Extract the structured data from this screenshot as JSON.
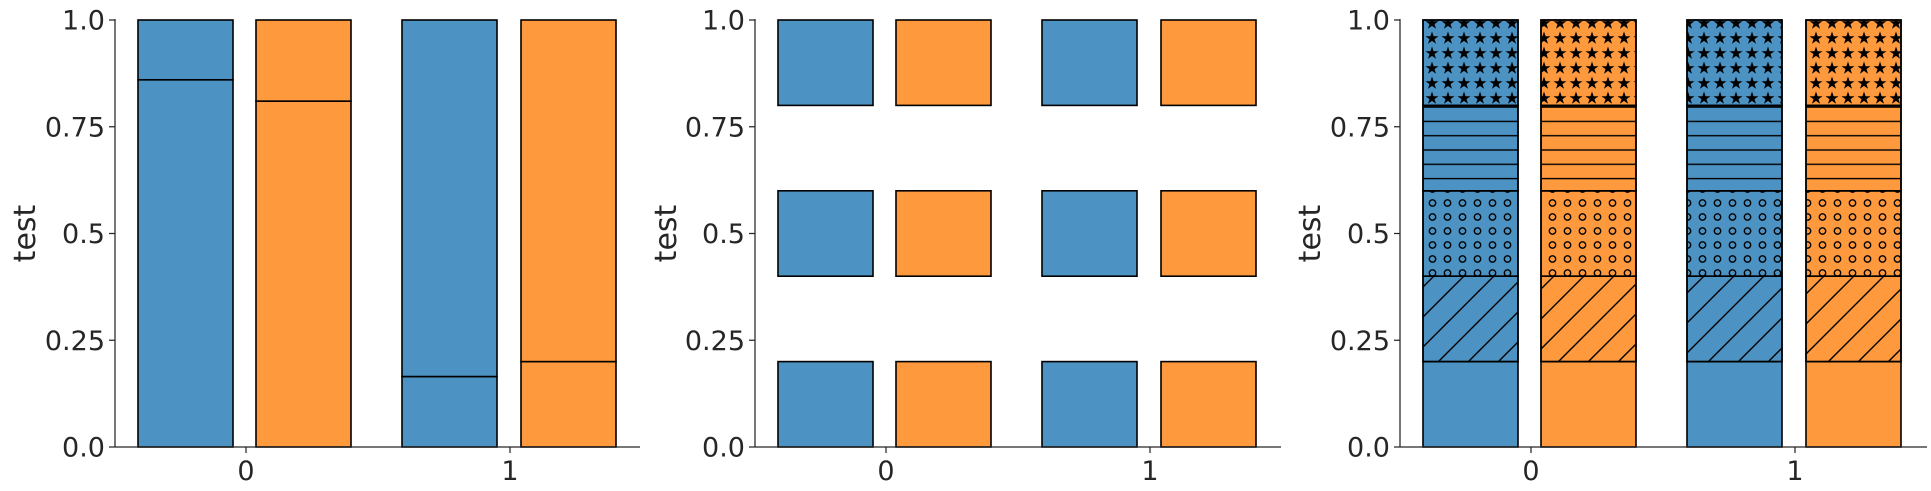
{
  "colors": {
    "blue": "#4c92c3",
    "orange": "#ff993e"
  },
  "chart_data": [
    {
      "type": "bar",
      "variant": "stacked",
      "categories": [
        "0",
        "1"
      ],
      "ylabel": "test",
      "xlabel": "",
      "ylim": [
        0,
        1
      ],
      "yticks": [
        "0.0",
        "0.25",
        "0.5",
        "0.75",
        "1.0"
      ],
      "bars": [
        {
          "category": "0",
          "color": "blue",
          "segments": [
            {
              "from": 0,
              "to": 0.86
            },
            {
              "from": 0.86,
              "to": 1.0
            }
          ]
        },
        {
          "category": "0",
          "color": "orange",
          "segments": [
            {
              "from": 0,
              "to": 0.81
            },
            {
              "from": 0.81,
              "to": 1.0
            }
          ]
        },
        {
          "category": "1",
          "color": "blue",
          "segments": [
            {
              "from": 0,
              "to": 0.165
            },
            {
              "from": 0.165,
              "to": 1.0
            }
          ]
        },
        {
          "category": "1",
          "color": "orange",
          "segments": [
            {
              "from": 0,
              "to": 0.2
            },
            {
              "from": 0.2,
              "to": 1.0
            }
          ]
        }
      ],
      "spines": "left-bottom",
      "grid": false
    },
    {
      "type": "bar",
      "variant": "floating",
      "categories": [
        "0",
        "1"
      ],
      "ylabel": "test",
      "xlabel": "",
      "ylim": [
        0,
        1
      ],
      "yticks": [
        "0.0",
        "0.25",
        "0.5",
        "0.75",
        "1.0"
      ],
      "bars": [
        {
          "category": "0",
          "color": "blue",
          "segments": [
            {
              "from": 0,
              "to": 0.2
            },
            {
              "from": 0.4,
              "to": 0.6
            },
            {
              "from": 0.8,
              "to": 1.0
            }
          ]
        },
        {
          "category": "0",
          "color": "orange",
          "segments": [
            {
              "from": 0,
              "to": 0.2
            },
            {
              "from": 0.4,
              "to": 0.6
            },
            {
              "from": 0.8,
              "to": 1.0
            }
          ]
        },
        {
          "category": "1",
          "color": "blue",
          "segments": [
            {
              "from": 0,
              "to": 0.2
            },
            {
              "from": 0.4,
              "to": 0.6
            },
            {
              "from": 0.8,
              "to": 1.0
            }
          ]
        },
        {
          "category": "1",
          "color": "orange",
          "segments": [
            {
              "from": 0,
              "to": 0.2
            },
            {
              "from": 0.4,
              "to": 0.6
            },
            {
              "from": 0.8,
              "to": 1.0
            }
          ]
        }
      ],
      "spines": "left-bottom",
      "grid": false
    },
    {
      "type": "bar",
      "variant": "stacked-hatched",
      "categories": [
        "0",
        "1"
      ],
      "ylabel": "test",
      "xlabel": "",
      "ylim": [
        0,
        1
      ],
      "yticks": [
        "0.0",
        "0.25",
        "0.5",
        "0.75",
        "1.0"
      ],
      "bars": [
        {
          "category": "0",
          "color": "blue",
          "segments": [
            {
              "from": 0,
              "to": 0.2,
              "hatch": "none"
            },
            {
              "from": 0.2,
              "to": 0.4,
              "hatch": "diagonal"
            },
            {
              "from": 0.4,
              "to": 0.6,
              "hatch": "circles"
            },
            {
              "from": 0.6,
              "to": 0.8,
              "hatch": "horizontal"
            },
            {
              "from": 0.8,
              "to": 1.0,
              "hatch": "stars"
            }
          ]
        },
        {
          "category": "0",
          "color": "orange",
          "segments": [
            {
              "from": 0,
              "to": 0.2,
              "hatch": "none"
            },
            {
              "from": 0.2,
              "to": 0.4,
              "hatch": "diagonal"
            },
            {
              "from": 0.4,
              "to": 0.6,
              "hatch": "circles"
            },
            {
              "from": 0.6,
              "to": 0.8,
              "hatch": "horizontal"
            },
            {
              "from": 0.8,
              "to": 1.0,
              "hatch": "stars"
            }
          ]
        },
        {
          "category": "1",
          "color": "blue",
          "segments": [
            {
              "from": 0,
              "to": 0.2,
              "hatch": "none"
            },
            {
              "from": 0.2,
              "to": 0.4,
              "hatch": "diagonal"
            },
            {
              "from": 0.4,
              "to": 0.6,
              "hatch": "circles"
            },
            {
              "from": 0.6,
              "to": 0.8,
              "hatch": "horizontal"
            },
            {
              "from": 0.8,
              "to": 1.0,
              "hatch": "stars"
            }
          ]
        },
        {
          "category": "1",
          "color": "orange",
          "segments": [
            {
              "from": 0,
              "to": 0.2,
              "hatch": "none"
            },
            {
              "from": 0.2,
              "to": 0.4,
              "hatch": "diagonal"
            },
            {
              "from": 0.4,
              "to": 0.6,
              "hatch": "circles"
            },
            {
              "from": 0.6,
              "to": 0.8,
              "hatch": "horizontal"
            },
            {
              "from": 0.8,
              "to": 1.0,
              "hatch": "stars"
            }
          ]
        }
      ],
      "spines": "left-bottom",
      "grid": false
    }
  ]
}
